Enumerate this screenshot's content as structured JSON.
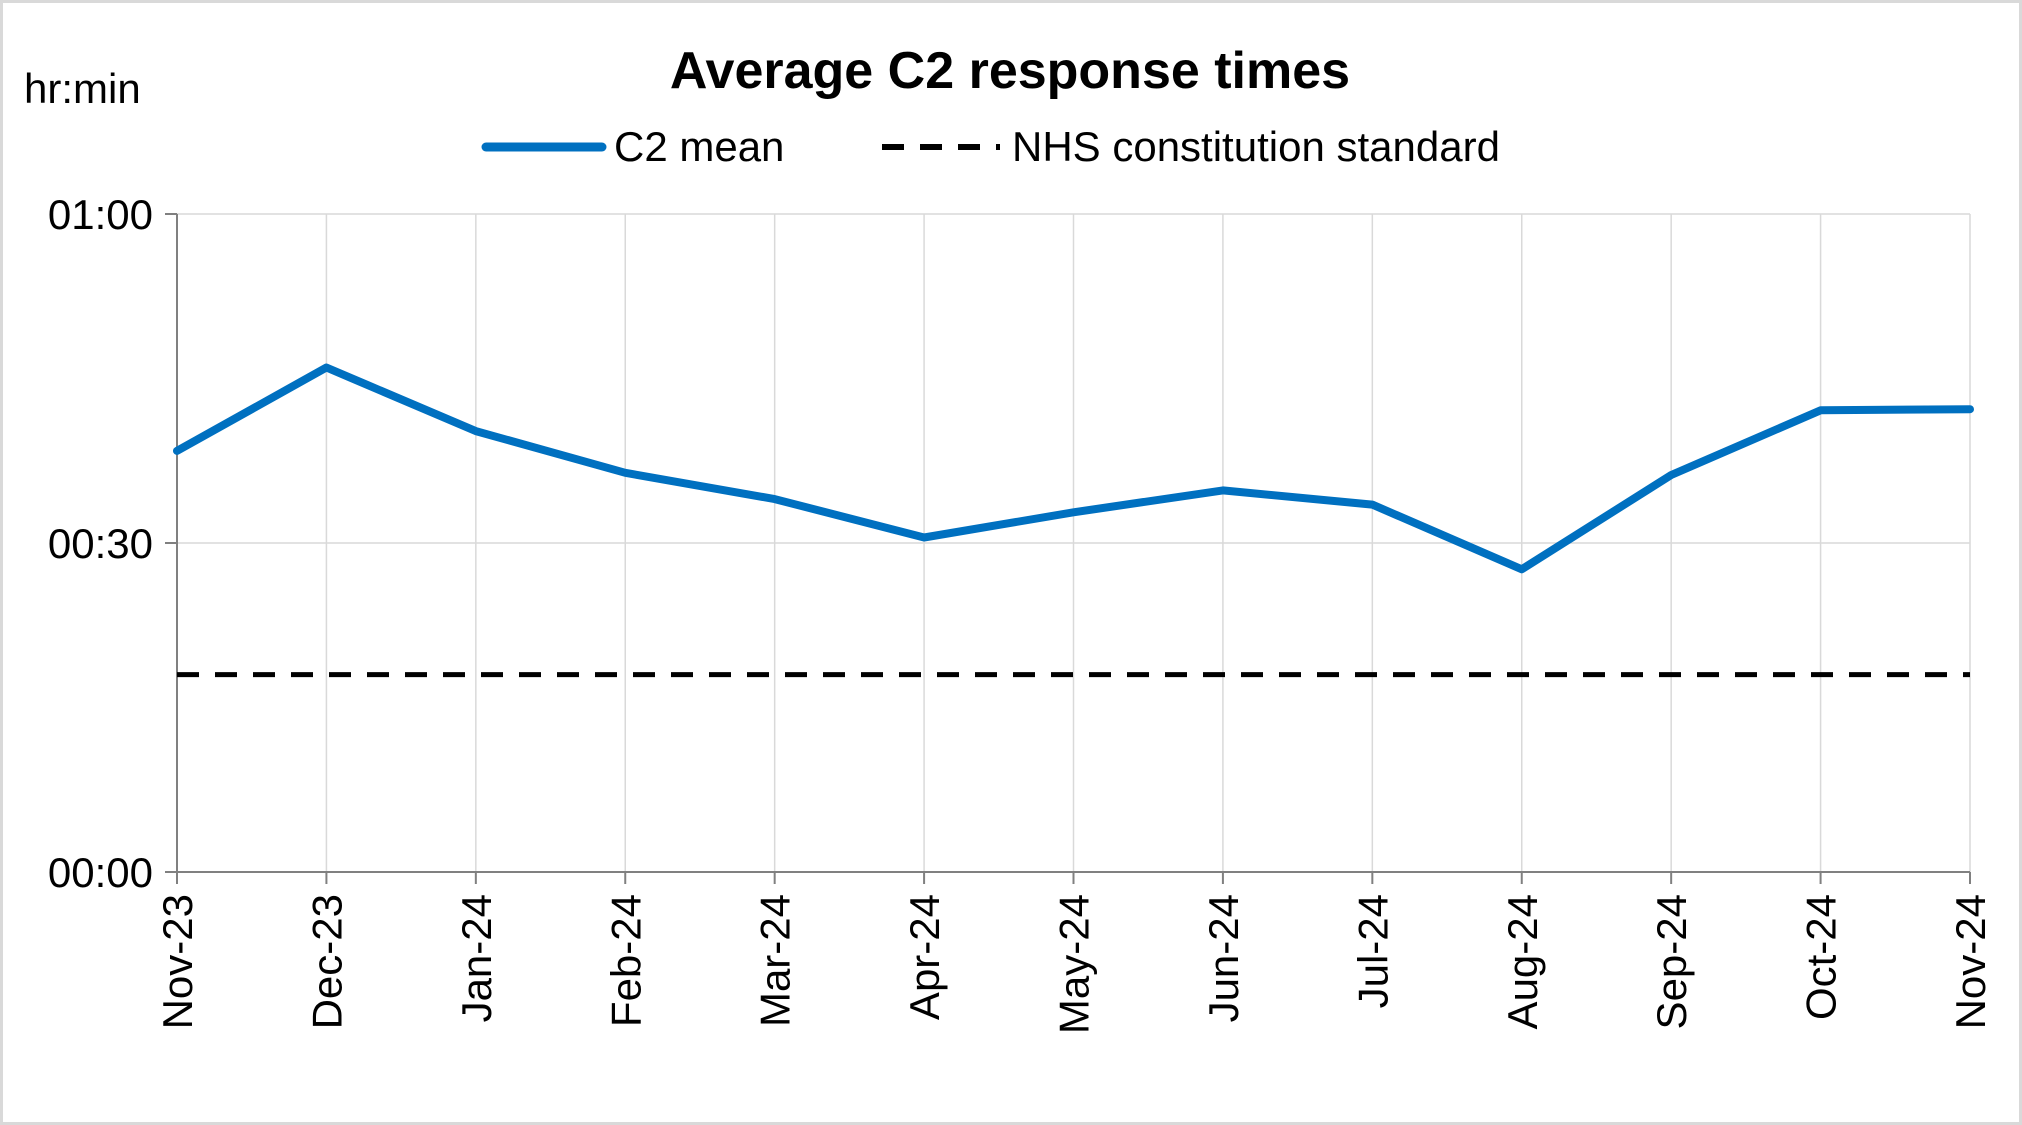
{
  "chart_data": {
    "type": "line",
    "title": "Average C2 response times",
    "unit_label": "hr:min",
    "xlabel": "",
    "ylabel": "",
    "categories": [
      "Nov-23",
      "Dec-23",
      "Jan-24",
      "Feb-24",
      "Mar-24",
      "Apr-24",
      "May-24",
      "Jun-24",
      "Jul-24",
      "Aug-24",
      "Sep-24",
      "Oct-24",
      "Nov-24"
    ],
    "y_ticks": [
      {
        "label": "00:00",
        "minutes": 0
      },
      {
        "label": "00:30",
        "minutes": 30
      },
      {
        "label": "01:00",
        "minutes": 60
      }
    ],
    "ylim_minutes": [
      0,
      60
    ],
    "grid": true,
    "legend_position": "top",
    "series": [
      {
        "name": "C2 mean",
        "style": "solid",
        "color": "#0070c0",
        "values_minutes": [
          38.4,
          46.0,
          40.2,
          36.4,
          34.0,
          30.5,
          32.8,
          34.8,
          33.5,
          27.6,
          36.2,
          42.1,
          42.2
        ]
      },
      {
        "name": "NHS constitution standard",
        "style": "dashed",
        "color": "#000000",
        "values_minutes": [
          18,
          18,
          18,
          18,
          18,
          18,
          18,
          18,
          18,
          18,
          18,
          18,
          18
        ]
      }
    ]
  }
}
